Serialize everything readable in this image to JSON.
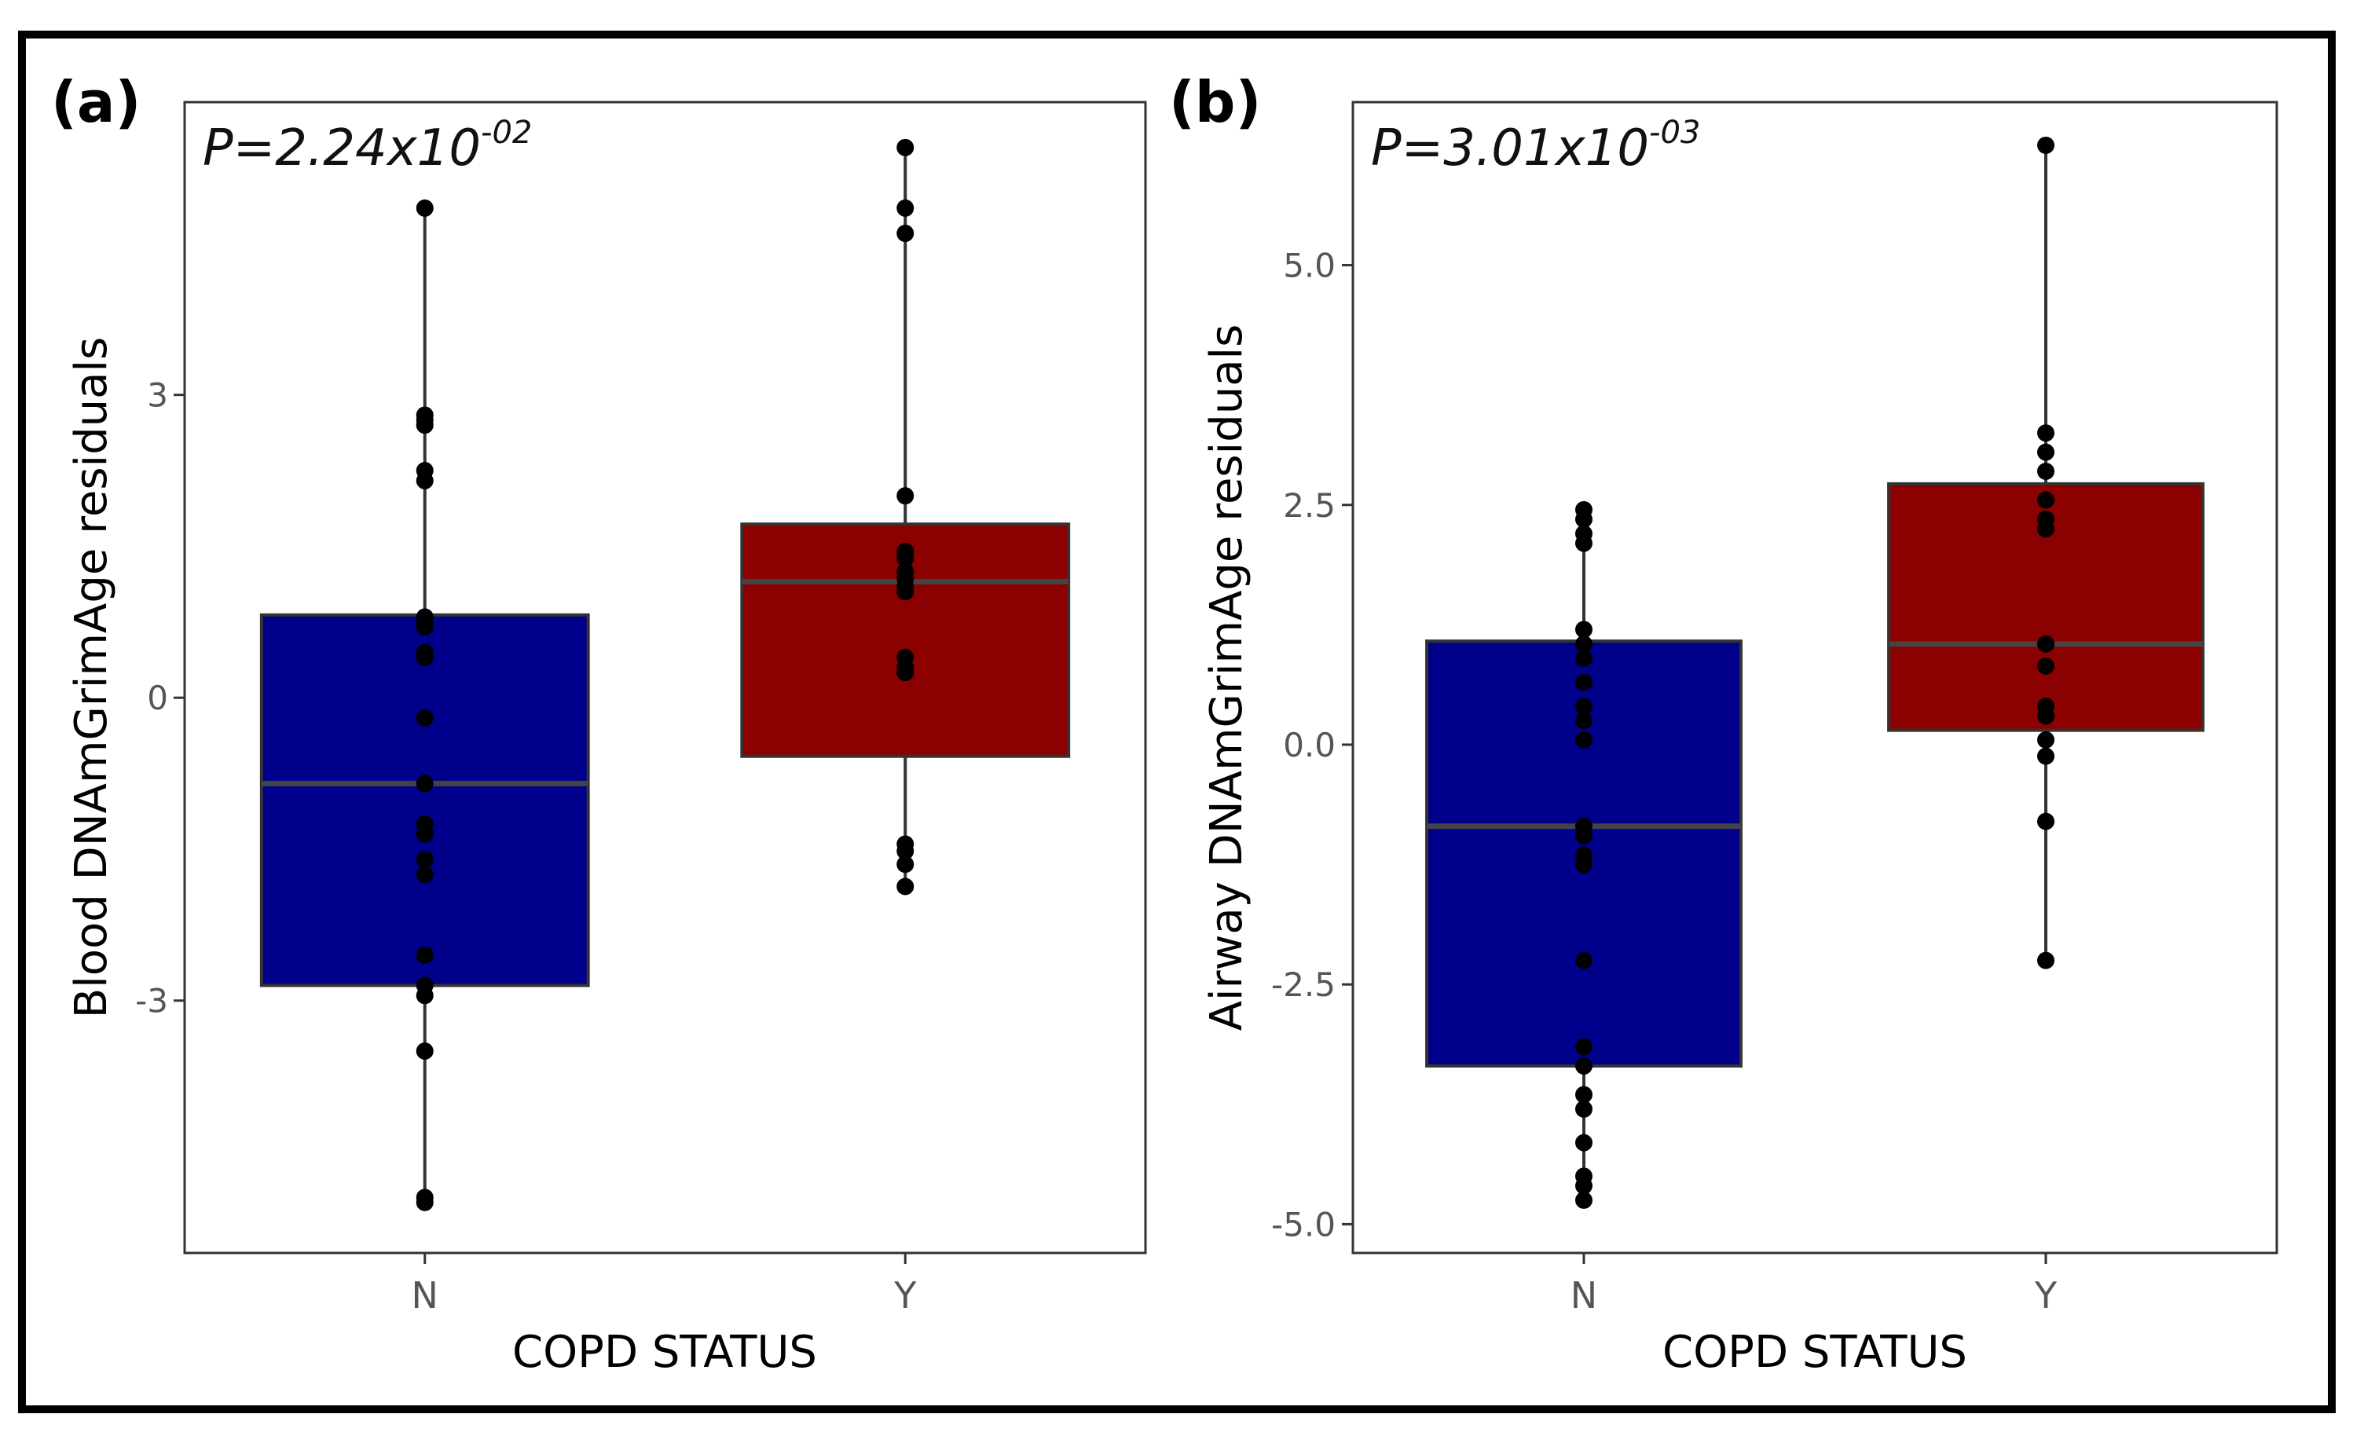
{
  "chart_data": [
    {
      "type": "box",
      "panel_label": "(a)",
      "p_value": {
        "prefix": "P=2.24x10",
        "exponent": "-02"
      },
      "xlabel": "COPD STATUS",
      "ylabel": "Blood DNAmGrimAge residuals",
      "ylim": [
        -5.5,
        5.9
      ],
      "yticks": [
        3,
        0,
        -3
      ],
      "ytick_labels": [
        "3",
        "0",
        "-3"
      ],
      "categories": [
        "N",
        "Y"
      ],
      "colors": [
        "#00008B",
        "#8B0000"
      ],
      "boxes": [
        {
          "category": "N",
          "whisker_low": -5.0,
          "q1": -2.85,
          "median": -0.85,
          "q3": 0.82,
          "whisker_high": 4.85,
          "points": [
            4.85,
            2.8,
            2.75,
            2.7,
            2.25,
            2.15,
            0.8,
            0.75,
            0.7,
            0.45,
            0.4,
            -0.2,
            -0.85,
            -1.25,
            -1.35,
            -1.6,
            -1.75,
            -2.55,
            -2.85,
            -2.95,
            -3.5,
            -4.95,
            -5.0
          ]
        },
        {
          "category": "Y",
          "whisker_low": -1.87,
          "q1": -0.58,
          "median": 1.15,
          "q3": 1.72,
          "whisker_high": 5.45,
          "points": [
            5.45,
            4.85,
            4.6,
            2.0,
            1.45,
            1.38,
            1.25,
            1.18,
            1.1,
            1.05,
            0.4,
            0.3,
            0.25,
            -1.45,
            -1.52,
            -1.65,
            -1.87
          ]
        }
      ]
    },
    {
      "type": "box",
      "panel_label": "(b)",
      "p_value": {
        "prefix": "P=3.01x10",
        "exponent": "-03"
      },
      "xlabel": "COPD STATUS",
      "ylabel": "Airway DNAmGrimAge residuals",
      "ylim": [
        -5.3,
        6.7
      ],
      "yticks": [
        5.0,
        2.5,
        0.0,
        -2.5,
        -5.0
      ],
      "ytick_labels": [
        "5.0",
        "2.5",
        "0.0",
        "-2.5",
        "-5.0"
      ],
      "categories": [
        "N",
        "Y"
      ],
      "colors": [
        "#00008B",
        "#8B0000"
      ],
      "boxes": [
        {
          "category": "N",
          "whisker_low": -4.75,
          "q1": -3.35,
          "median": -0.85,
          "q3": 1.08,
          "whisker_high": 2.45,
          "points": [
            2.45,
            2.35,
            2.2,
            2.1,
            1.2,
            1.05,
            0.9,
            0.65,
            0.4,
            0.25,
            0.05,
            -0.85,
            -0.95,
            -1.15,
            -1.25,
            -2.25,
            -3.15,
            -3.35,
            -3.65,
            -3.8,
            -4.15,
            -4.5,
            -4.6,
            -4.75
          ]
        },
        {
          "category": "Y",
          "whisker_low": -2.25,
          "q1": 0.15,
          "median": 1.05,
          "q3": 2.72,
          "whisker_high": 6.25,
          "points": [
            6.25,
            3.25,
            3.05,
            2.85,
            2.55,
            2.35,
            2.25,
            1.05,
            0.82,
            0.4,
            0.3,
            0.05,
            -0.12,
            -0.8,
            -2.25
          ]
        }
      ]
    }
  ]
}
